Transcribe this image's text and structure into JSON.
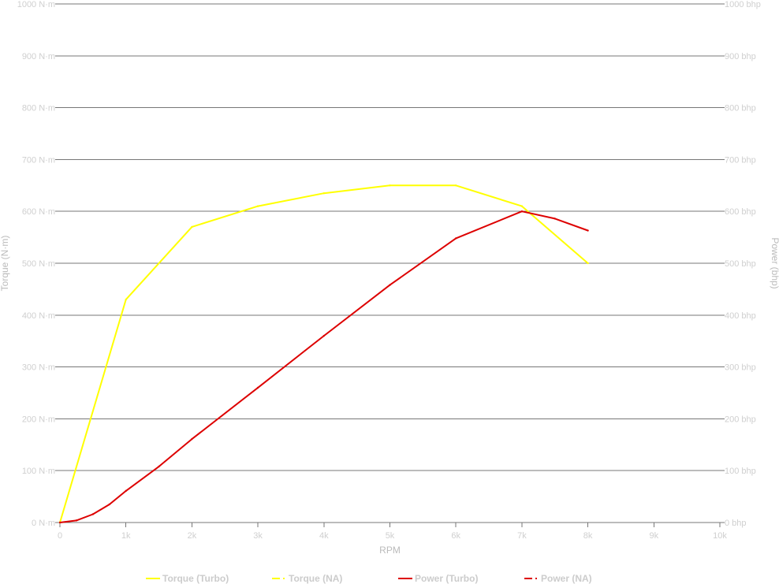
{
  "chart_data": {
    "type": "line",
    "title": "",
    "xlabel": "RPM",
    "ylabel_left": "Torque (N·m)",
    "ylabel_right": "Power (bhp)",
    "xlim": [
      0,
      10000
    ],
    "ylim_left": [
      0,
      1000
    ],
    "ylim_right": [
      0,
      1000
    ],
    "x_ticks": [
      "0",
      "1k",
      "2k",
      "3k",
      "4k",
      "5k",
      "6k",
      "7k",
      "8k",
      "9k",
      "10k"
    ],
    "y_ticks_left": [
      "0 N·m",
      "100 N·m",
      "200 N·m",
      "300 N·m",
      "400 N·m",
      "500 N·m",
      "600 N·m",
      "700 N·m",
      "800 N·m",
      "900 N·m",
      "1000 N·m"
    ],
    "y_ticks_right": [
      "0 bhp",
      "100 bhp",
      "200 bhp",
      "300 bhp",
      "400 bhp",
      "500 bhp",
      "600 bhp",
      "700 bhp",
      "800 bhp",
      "900 bhp",
      "1000 bhp"
    ],
    "grid": true,
    "legend_position": "bottom",
    "series": [
      {
        "name": "Torque (Turbo)",
        "axis": "left",
        "color": "#ffff00",
        "dash": "solid",
        "x": [
          0,
          1000,
          2000,
          3000,
          4000,
          5000,
          6000,
          7000,
          8000
        ],
        "y": [
          0,
          430,
          570,
          610,
          635,
          650,
          650,
          610,
          500
        ]
      },
      {
        "name": "Torque (NA)",
        "axis": "left",
        "color": "#ffff00",
        "dash": "dashed",
        "x": [],
        "y": []
      },
      {
        "name": "Power (Turbo)",
        "axis": "right",
        "color": "#dd0000",
        "dash": "solid",
        "x": [
          0,
          250,
          500,
          750,
          1000,
          1500,
          2000,
          3000,
          4000,
          5000,
          6000,
          7000,
          7500,
          8000
        ],
        "y": [
          0,
          4,
          16,
          35,
          61,
          108,
          161,
          260,
          360,
          458,
          548,
          600,
          586,
          563
        ]
      },
      {
        "name": "Power (NA)",
        "axis": "right",
        "color": "#dd0000",
        "dash": "dashed",
        "x": [],
        "y": []
      }
    ]
  },
  "colors": {
    "grid": "#777777",
    "tick_label": "#cfcfcf",
    "axis_title": "#bbbbbb",
    "legend_label": "#cccccc"
  }
}
